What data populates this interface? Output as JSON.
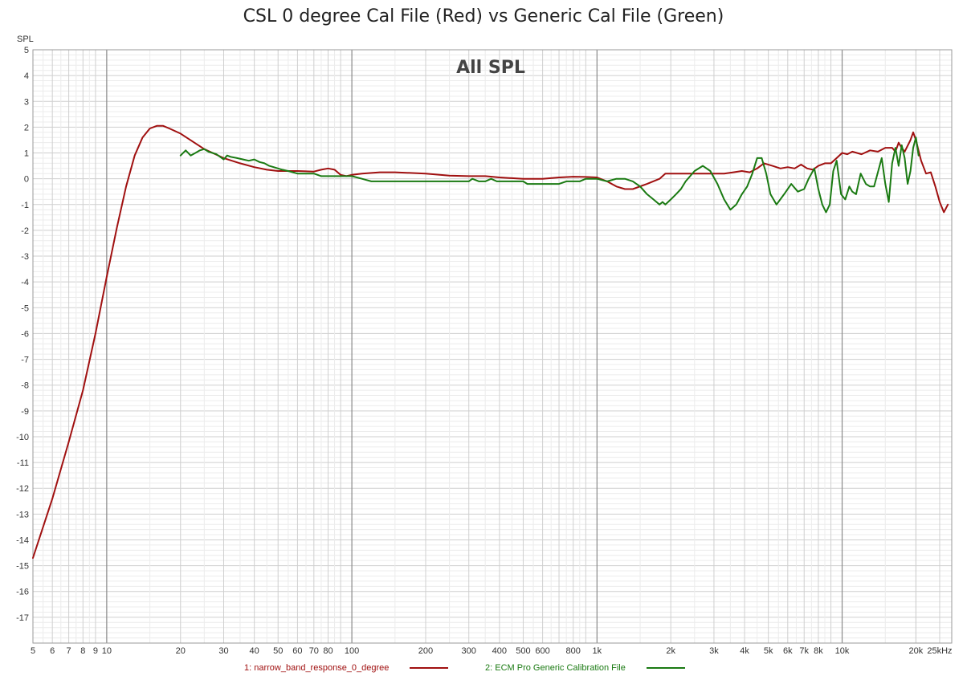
{
  "title": "CSL 0 degree Cal File (Red) vs Generic Cal File (Green)",
  "chart_data": {
    "type": "line",
    "title": "CSL 0 degree Cal File (Red) vs Generic Cal File (Green)",
    "annotation": "All SPL",
    "ylabel": "SPL",
    "xlabel": "",
    "xscale": "log",
    "xlim": [
      5,
      28000
    ],
    "ylim": [
      -18,
      5
    ],
    "grid": true,
    "legend_position": "bottom",
    "x_ticks": [
      {
        "v": 5,
        "label": "5"
      },
      {
        "v": 6,
        "label": "6"
      },
      {
        "v": 7,
        "label": "7"
      },
      {
        "v": 8,
        "label": "8"
      },
      {
        "v": 9,
        "label": "9"
      },
      {
        "v": 10,
        "label": "10"
      },
      {
        "v": 20,
        "label": "20"
      },
      {
        "v": 30,
        "label": "30"
      },
      {
        "v": 40,
        "label": "40"
      },
      {
        "v": 50,
        "label": "50"
      },
      {
        "v": 60,
        "label": "60"
      },
      {
        "v": 70,
        "label": "70"
      },
      {
        "v": 80,
        "label": "80"
      },
      {
        "v": 100,
        "label": "100"
      },
      {
        "v": 200,
        "label": "200"
      },
      {
        "v": 300,
        "label": "300"
      },
      {
        "v": 400,
        "label": "400"
      },
      {
        "v": 500,
        "label": "500"
      },
      {
        "v": 600,
        "label": "600"
      },
      {
        "v": 800,
        "label": "800"
      },
      {
        "v": 1000,
        "label": "1k"
      },
      {
        "v": 2000,
        "label": "2k"
      },
      {
        "v": 3000,
        "label": "3k"
      },
      {
        "v": 4000,
        "label": "4k"
      },
      {
        "v": 5000,
        "label": "5k"
      },
      {
        "v": 6000,
        "label": "6k"
      },
      {
        "v": 7000,
        "label": "7k"
      },
      {
        "v": 8000,
        "label": "8k"
      },
      {
        "v": 10000,
        "label": "10k"
      },
      {
        "v": 20000,
        "label": "20k"
      },
      {
        "v": 25000,
        "label": "25kHz"
      }
    ],
    "y_ticks": [
      5,
      4,
      3,
      2,
      1,
      0,
      -1,
      -2,
      -3,
      -4,
      -5,
      -6,
      -7,
      -8,
      -9,
      -10,
      -11,
      -12,
      -13,
      -14,
      -15,
      -16,
      -17
    ],
    "series": [
      {
        "name": "1: narrow_band_response_0_degree",
        "color": "#a01010",
        "points": [
          [
            5,
            -14.7
          ],
          [
            6,
            -12.4
          ],
          [
            7,
            -10.2
          ],
          [
            8,
            -8.2
          ],
          [
            9,
            -6.0
          ],
          [
            10,
            -3.8
          ],
          [
            11,
            -1.9
          ],
          [
            12,
            -0.3
          ],
          [
            13,
            0.9
          ],
          [
            14,
            1.6
          ],
          [
            15,
            1.95
          ],
          [
            16,
            2.05
          ],
          [
            17,
            2.05
          ],
          [
            18,
            1.95
          ],
          [
            20,
            1.75
          ],
          [
            25,
            1.15
          ],
          [
            30,
            0.8
          ],
          [
            35,
            0.6
          ],
          [
            40,
            0.45
          ],
          [
            45,
            0.35
          ],
          [
            50,
            0.3
          ],
          [
            60,
            0.3
          ],
          [
            70,
            0.28
          ],
          [
            75,
            0.35
          ],
          [
            80,
            0.4
          ],
          [
            85,
            0.35
          ],
          [
            90,
            0.15
          ],
          [
            95,
            0.1
          ],
          [
            100,
            0.15
          ],
          [
            110,
            0.2
          ],
          [
            130,
            0.25
          ],
          [
            150,
            0.25
          ],
          [
            200,
            0.2
          ],
          [
            250,
            0.12
          ],
          [
            300,
            0.1
          ],
          [
            350,
            0.1
          ],
          [
            400,
            0.05
          ],
          [
            500,
            0.0
          ],
          [
            600,
            0.0
          ],
          [
            700,
            0.05
          ],
          [
            800,
            0.08
          ],
          [
            900,
            0.07
          ],
          [
            1000,
            0.05
          ],
          [
            1100,
            -0.1
          ],
          [
            1200,
            -0.3
          ],
          [
            1300,
            -0.4
          ],
          [
            1400,
            -0.4
          ],
          [
            1600,
            -0.2
          ],
          [
            1800,
            0.0
          ],
          [
            1900,
            0.2
          ],
          [
            2000,
            0.2
          ],
          [
            2500,
            0.2
          ],
          [
            2800,
            0.2
          ],
          [
            3000,
            0.2
          ],
          [
            3300,
            0.2
          ],
          [
            3600,
            0.25
          ],
          [
            3900,
            0.3
          ],
          [
            4200,
            0.25
          ],
          [
            4500,
            0.4
          ],
          [
            4800,
            0.6
          ],
          [
            5200,
            0.5
          ],
          [
            5600,
            0.4
          ],
          [
            6000,
            0.45
          ],
          [
            6400,
            0.4
          ],
          [
            6800,
            0.55
          ],
          [
            7200,
            0.4
          ],
          [
            7600,
            0.35
          ],
          [
            8000,
            0.5
          ],
          [
            8500,
            0.6
          ],
          [
            9000,
            0.6
          ],
          [
            9500,
            0.8
          ],
          [
            10000,
            1.0
          ],
          [
            10500,
            0.95
          ],
          [
            11000,
            1.05
          ],
          [
            12000,
            0.95
          ],
          [
            13000,
            1.1
          ],
          [
            14000,
            1.05
          ],
          [
            15000,
            1.2
          ],
          [
            16000,
            1.2
          ],
          [
            16500,
            1.05
          ],
          [
            17000,
            1.4
          ],
          [
            17500,
            1.2
          ],
          [
            18000,
            1.05
          ],
          [
            19000,
            1.5
          ],
          [
            19500,
            1.8
          ],
          [
            20000,
            1.5
          ],
          [
            21000,
            0.7
          ],
          [
            22000,
            0.2
          ],
          [
            23000,
            0.25
          ],
          [
            24000,
            -0.3
          ],
          [
            25000,
            -0.9
          ],
          [
            26000,
            -1.3
          ],
          [
            27000,
            -1.0
          ]
        ]
      },
      {
        "name": "2: ECM Pro Generic Calibration File",
        "color": "#1a7a12",
        "points": [
          [
            20,
            0.9
          ],
          [
            21,
            1.1
          ],
          [
            22,
            0.9
          ],
          [
            23,
            1.0
          ],
          [
            24,
            1.1
          ],
          [
            25,
            1.15
          ],
          [
            26,
            1.05
          ],
          [
            27,
            1.0
          ],
          [
            28,
            0.95
          ],
          [
            29,
            0.85
          ],
          [
            30,
            0.75
          ],
          [
            31,
            0.9
          ],
          [
            32,
            0.85
          ],
          [
            34,
            0.8
          ],
          [
            36,
            0.75
          ],
          [
            38,
            0.7
          ],
          [
            40,
            0.75
          ],
          [
            42,
            0.65
          ],
          [
            44,
            0.6
          ],
          [
            46,
            0.5
          ],
          [
            48,
            0.45
          ],
          [
            50,
            0.4
          ],
          [
            52,
            0.35
          ],
          [
            55,
            0.3
          ],
          [
            60,
            0.2
          ],
          [
            70,
            0.2
          ],
          [
            75,
            0.1
          ],
          [
            80,
            0.1
          ],
          [
            100,
            0.1
          ],
          [
            110,
            0.0
          ],
          [
            120,
            -0.1
          ],
          [
            200,
            -0.1
          ],
          [
            300,
            -0.1
          ],
          [
            310,
            0.0
          ],
          [
            330,
            -0.1
          ],
          [
            350,
            -0.1
          ],
          [
            370,
            0.0
          ],
          [
            390,
            -0.1
          ],
          [
            500,
            -0.1
          ],
          [
            520,
            -0.2
          ],
          [
            700,
            -0.2
          ],
          [
            750,
            -0.1
          ],
          [
            850,
            -0.1
          ],
          [
            900,
            0.0
          ],
          [
            1000,
            0.0
          ],
          [
            1100,
            -0.1
          ],
          [
            1200,
            0.0
          ],
          [
            1300,
            0.0
          ],
          [
            1400,
            -0.1
          ],
          [
            1500,
            -0.3
          ],
          [
            1600,
            -0.6
          ],
          [
            1700,
            -0.8
          ],
          [
            1800,
            -1.0
          ],
          [
            1850,
            -0.9
          ],
          [
            1900,
            -1.0
          ],
          [
            1950,
            -0.9
          ],
          [
            2000,
            -0.8
          ],
          [
            2100,
            -0.6
          ],
          [
            2200,
            -0.4
          ],
          [
            2300,
            -0.1
          ],
          [
            2500,
            0.3
          ],
          [
            2700,
            0.5
          ],
          [
            2900,
            0.3
          ],
          [
            3100,
            -0.2
          ],
          [
            3300,
            -0.8
          ],
          [
            3500,
            -1.2
          ],
          [
            3700,
            -1.0
          ],
          [
            3900,
            -0.6
          ],
          [
            4100,
            -0.3
          ],
          [
            4300,
            0.2
          ],
          [
            4500,
            0.8
          ],
          [
            4700,
            0.8
          ],
          [
            4900,
            0.2
          ],
          [
            5100,
            -0.6
          ],
          [
            5400,
            -1.0
          ],
          [
            5800,
            -0.6
          ],
          [
            6200,
            -0.2
          ],
          [
            6600,
            -0.5
          ],
          [
            7000,
            -0.4
          ],
          [
            7300,
            0.0
          ],
          [
            7700,
            0.4
          ],
          [
            8000,
            -0.4
          ],
          [
            8300,
            -1.0
          ],
          [
            8600,
            -1.3
          ],
          [
            8900,
            -1.0
          ],
          [
            9200,
            0.3
          ],
          [
            9500,
            0.7
          ],
          [
            9900,
            -0.6
          ],
          [
            10300,
            -0.8
          ],
          [
            10700,
            -0.3
          ],
          [
            11000,
            -0.5
          ],
          [
            11400,
            -0.6
          ],
          [
            11900,
            0.2
          ],
          [
            12500,
            -0.2
          ],
          [
            13000,
            -0.3
          ],
          [
            13500,
            -0.3
          ],
          [
            14500,
            0.8
          ],
          [
            15000,
            -0.2
          ],
          [
            15500,
            -0.9
          ],
          [
            16000,
            0.6
          ],
          [
            16500,
            1.2
          ],
          [
            17000,
            0.5
          ],
          [
            17500,
            1.3
          ],
          [
            18000,
            0.8
          ],
          [
            18500,
            -0.2
          ],
          [
            19000,
            0.3
          ],
          [
            19500,
            1.2
          ],
          [
            20000,
            1.6
          ],
          [
            20500,
            0.9
          ]
        ]
      }
    ]
  }
}
